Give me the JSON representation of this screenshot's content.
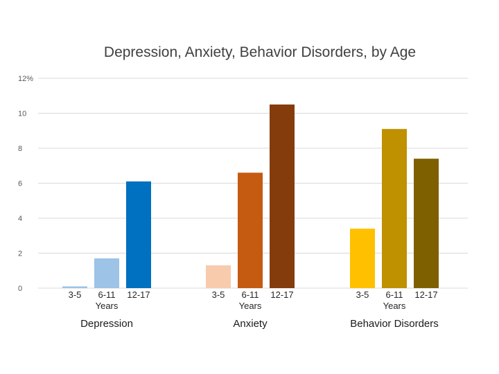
{
  "chart_data": {
    "type": "bar",
    "title": "Depression,  Anxiety, Behavior Disorders, by Age",
    "ylim": [
      0,
      12
    ],
    "yticks": [
      "0",
      "2",
      "4",
      "6",
      "8",
      "10",
      "12%"
    ],
    "grid": true,
    "sub_labels": [
      "3-5",
      "6-11",
      "12-17"
    ],
    "years_label": "Years",
    "groups": [
      {
        "name": "Depression",
        "values": [
          0.1,
          1.7,
          6.1
        ],
        "colors": [
          "#9dc3e6",
          "#9dc3e6",
          "#0070c0"
        ]
      },
      {
        "name": "Anxiety",
        "values": [
          1.3,
          6.6,
          10.5
        ],
        "colors": [
          "#f8cbad",
          "#c55a11",
          "#843c0c"
        ]
      },
      {
        "name": "Behavior Disorders",
        "values": [
          3.4,
          9.1,
          7.4
        ],
        "colors": [
          "#ffc000",
          "#bf9000",
          "#7f6000"
        ]
      }
    ]
  }
}
